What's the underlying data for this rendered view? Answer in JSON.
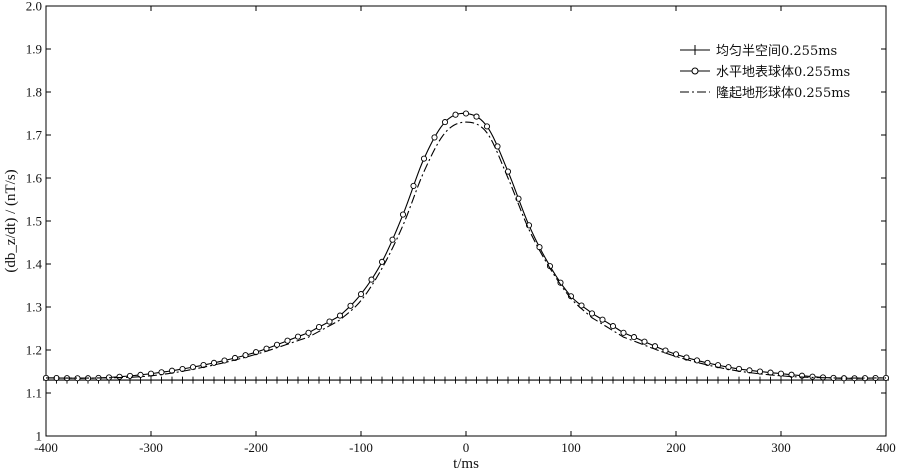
{
  "chart_data": {
    "type": "line",
    "xlabel": "t/ms",
    "ylabel": "(db_z/dt) / (nT/s)",
    "xlim": [
      -400,
      400
    ],
    "ylim": [
      1.0,
      2.0
    ],
    "x_ticks": [
      -400,
      -300,
      -200,
      -100,
      0,
      100,
      200,
      300,
      400
    ],
    "y_ticks": [
      1.0,
      1.1,
      1.2,
      1.3,
      1.4,
      1.5,
      1.6,
      1.7,
      1.8,
      1.9,
      2.0
    ],
    "x_tick_labels": [
      "-400",
      "-300",
      "-200",
      "-100",
      "0",
      "100",
      "200",
      "300",
      "400"
    ],
    "y_tick_labels": [
      "1",
      "1.1",
      "1.2",
      "1.3",
      "1.4",
      "1.5",
      "1.6",
      "1.7",
      "1.8",
      "1.9",
      "2.0"
    ],
    "grid": false,
    "legend_position": "top-right",
    "x": [
      -400,
      -350,
      -300,
      -250,
      -200,
      -150,
      -120,
      -100,
      -80,
      -60,
      -40,
      -20,
      0,
      20,
      40,
      60,
      80,
      100,
      120,
      150,
      200,
      250,
      300,
      350,
      400
    ],
    "series": [
      {
        "name": "均匀半空间0.255ms",
        "marker": "plus",
        "line": "solid",
        "values": [
          1.13,
          1.13,
          1.13,
          1.13,
          1.13,
          1.13,
          1.13,
          1.13,
          1.13,
          1.13,
          1.13,
          1.13,
          1.13,
          1.13,
          1.13,
          1.13,
          1.13,
          1.13,
          1.13,
          1.13,
          1.13,
          1.13,
          1.13,
          1.13,
          1.13
        ]
      },
      {
        "name": "水平地表球体0.255ms",
        "marker": "circle",
        "line": "solid",
        "values": [
          1.135,
          1.135,
          1.145,
          1.165,
          1.195,
          1.24,
          1.28,
          1.33,
          1.405,
          1.515,
          1.645,
          1.73,
          1.75,
          1.72,
          1.615,
          1.49,
          1.395,
          1.325,
          1.285,
          1.24,
          1.19,
          1.16,
          1.145,
          1.135,
          1.135
        ]
      },
      {
        "name": "隆起地形球体0.255ms",
        "marker": "none",
        "line": "dashdot",
        "values": [
          1.135,
          1.135,
          1.14,
          1.16,
          1.19,
          1.23,
          1.27,
          1.315,
          1.39,
          1.49,
          1.615,
          1.705,
          1.73,
          1.705,
          1.6,
          1.48,
          1.39,
          1.32,
          1.275,
          1.23,
          1.185,
          1.155,
          1.14,
          1.135,
          1.135
        ]
      }
    ]
  }
}
